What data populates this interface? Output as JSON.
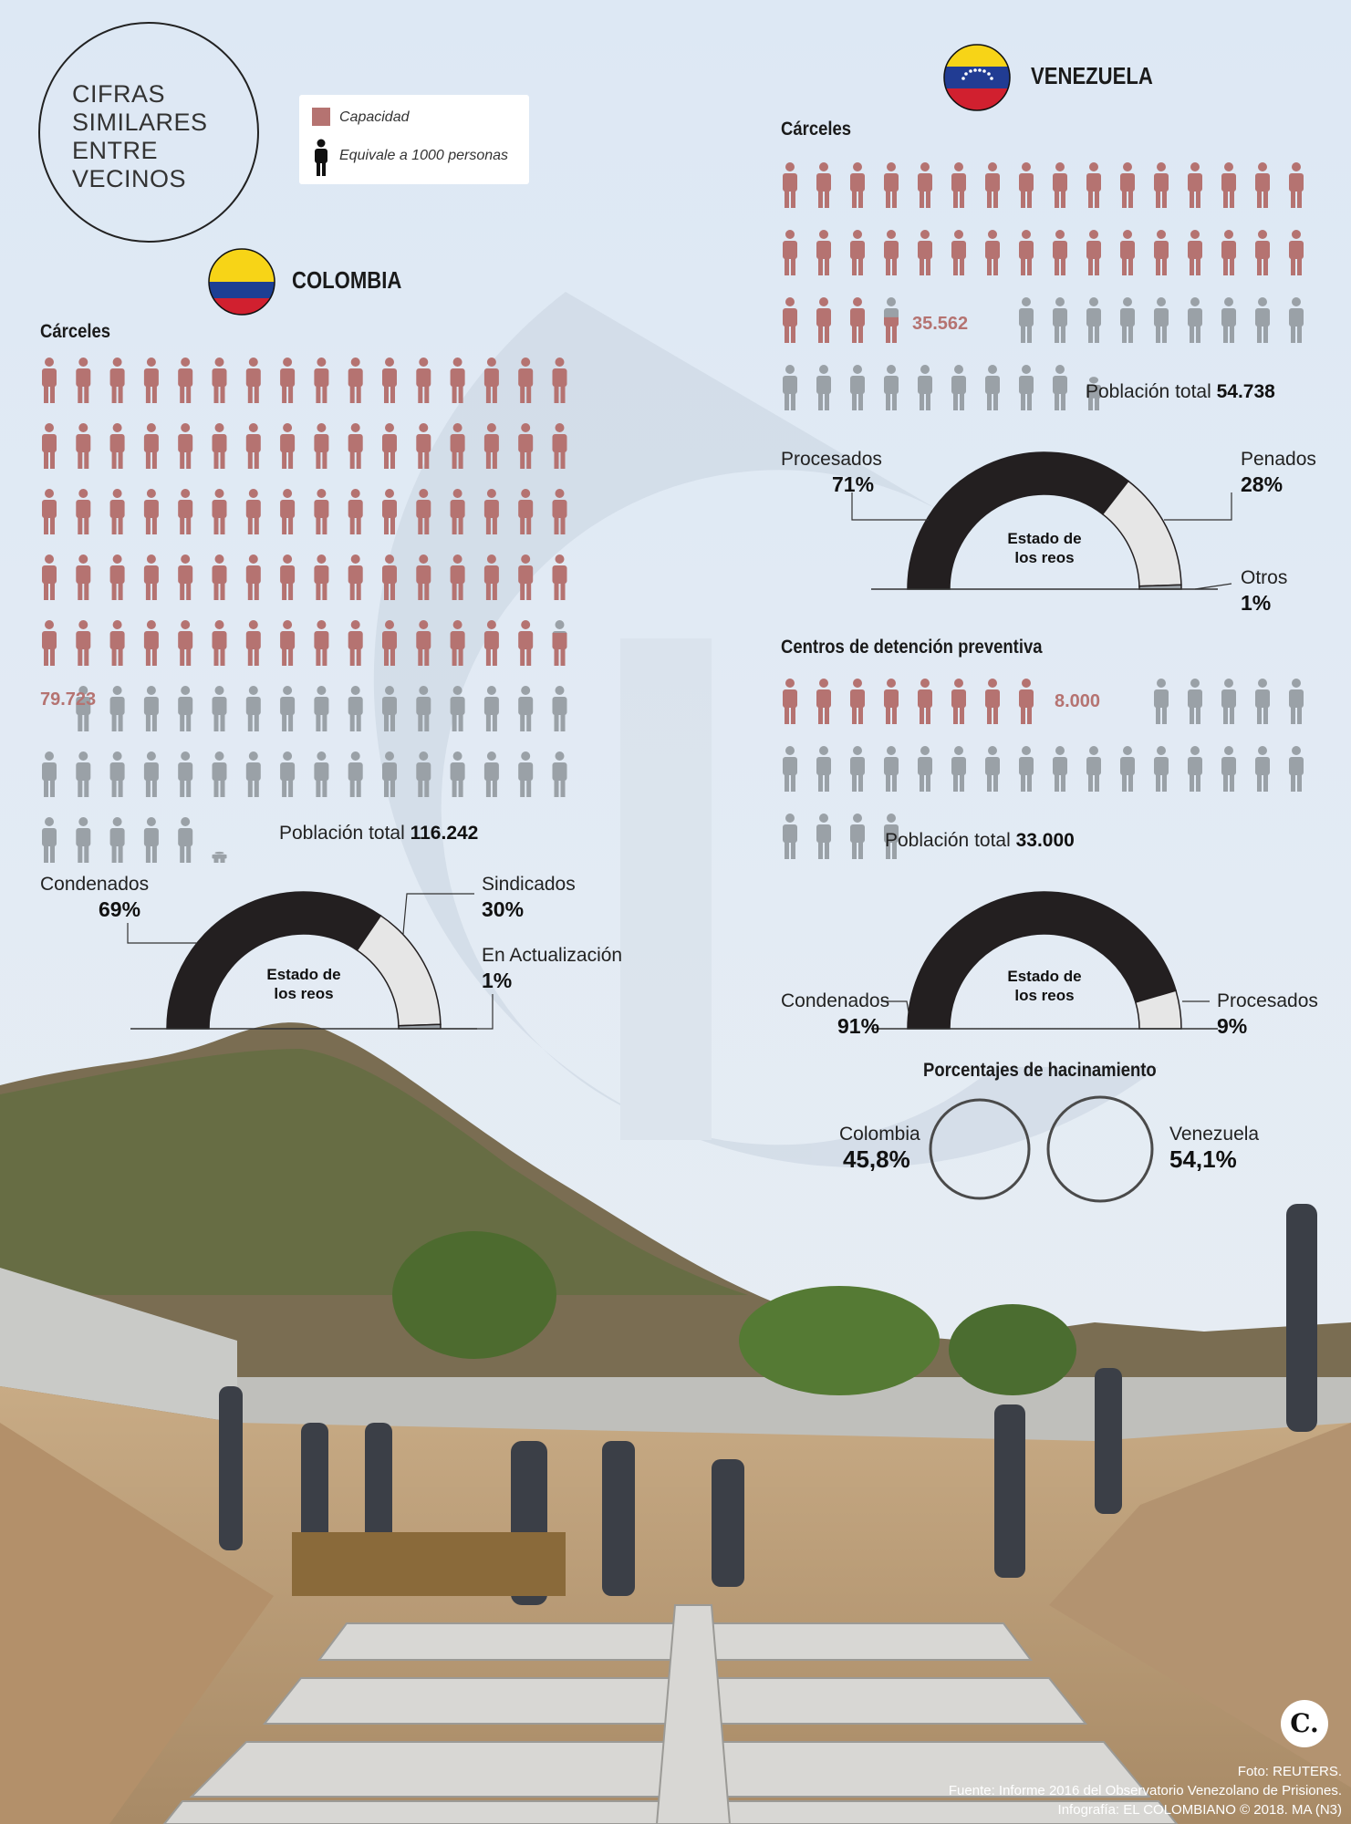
{
  "header": {
    "title_lines": "CIFRAS\nSIMILARES\nENTRE\nVECINOS",
    "legend": {
      "capacity_label": "Capacidad",
      "person_label": "Equivale a 1000 personas"
    }
  },
  "colors": {
    "capacity": "#b57371",
    "population": "#9aa1a7",
    "gauge_dark": "#231f20",
    "gauge_light": "#e6e6e6"
  },
  "colombia": {
    "name": "COLOMBIA",
    "carceles": {
      "heading": "Cárceles",
      "capacity_label": "79.723",
      "capacity": 79723,
      "population": 116242,
      "population_prefix": "Población total ",
      "population_label": "116.242"
    },
    "gauge": {
      "center_text": "Estado de\nlos reos",
      "segments": [
        {
          "label": "Condenados",
          "pct_label": "69%",
          "value": 69
        },
        {
          "label": "Sindicados",
          "pct_label": "30%",
          "value": 30
        },
        {
          "label": "En Actualización",
          "pct_label": "1%",
          "value": 1
        }
      ]
    }
  },
  "venezuela": {
    "name": "VENEZUELA",
    "carceles": {
      "heading": "Cárceles",
      "capacity_label": "35.562",
      "capacity": 35562,
      "population": 54738,
      "population_prefix": "Población total ",
      "population_label": "54.738"
    },
    "gauge": {
      "center_text": "Estado de\nlos reos",
      "segments": [
        {
          "label": "Procesados",
          "pct_label": "71%",
          "value": 71
        },
        {
          "label": "Penados",
          "pct_label": "28%",
          "value": 28
        },
        {
          "label": "Otros",
          "pct_label": "1%",
          "value": 1
        }
      ]
    },
    "detencion": {
      "heading": "Centros de detención preventiva",
      "capacity_label": "8.000",
      "capacity": 8000,
      "population": 33000,
      "population_prefix": "Población total ",
      "population_label": "33.000"
    },
    "gauge2": {
      "center_text": "Estado de\nlos reos",
      "segments": [
        {
          "label": "Condenados",
          "pct_label": "91%",
          "value": 91
        },
        {
          "label": "Procesados",
          "pct_label": "9%",
          "value": 9
        }
      ]
    }
  },
  "hacinamiento": {
    "heading": "Porcentajes de hacinamiento",
    "items": [
      {
        "label": "Colombia",
        "pct_label": "45,8%",
        "value": 45.8
      },
      {
        "label": "Venezuela",
        "pct_label": "54,1%",
        "value": 54.1
      }
    ]
  },
  "footer": {
    "photo": "Foto: REUTERS.",
    "source": "Fuente: Informe 2016 del Observatorio Venezolano de Prisiones.",
    "credit": "Infografía: EL COLOMBIANO © 2018. MA (N3)",
    "logo": "C."
  }
}
